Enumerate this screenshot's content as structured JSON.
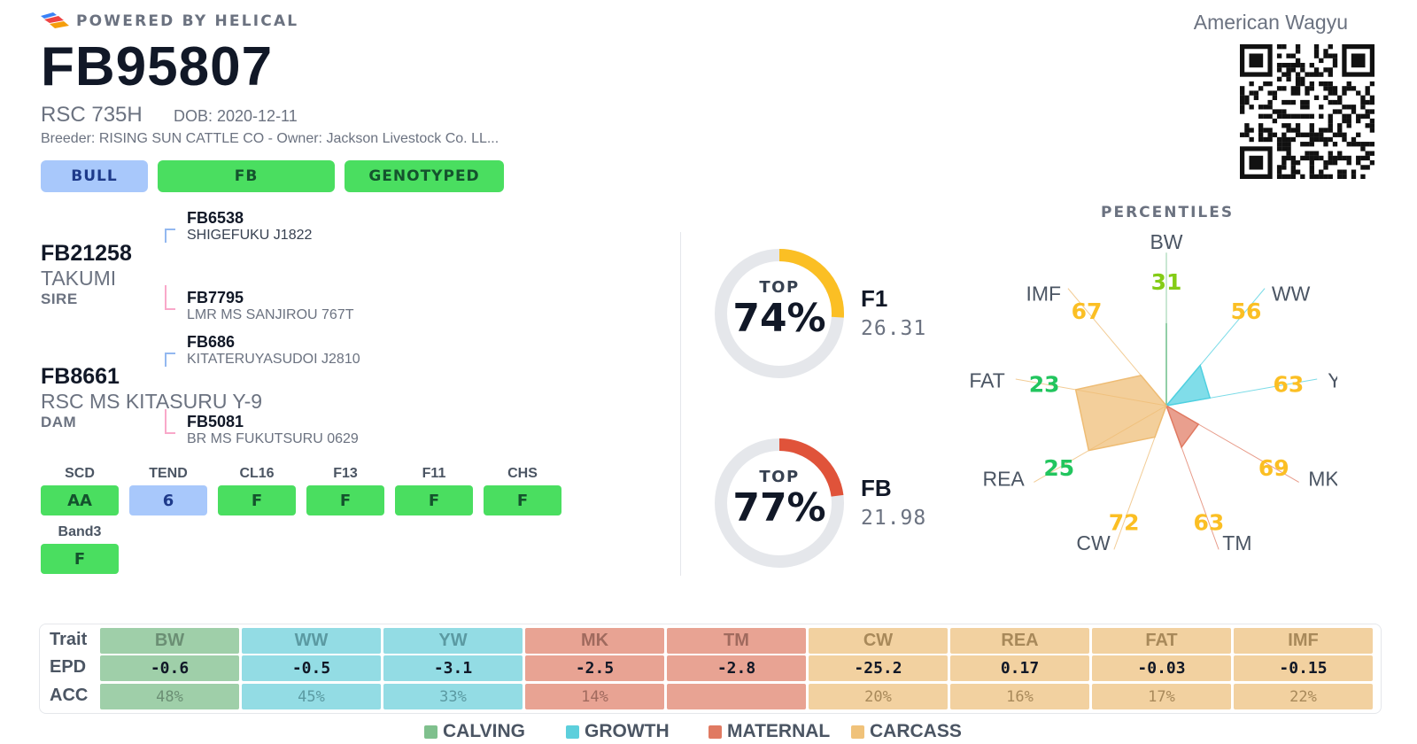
{
  "header": {
    "powered_by": "POWERED BY HELICAL",
    "registration": "FB95807",
    "name": "RSC 735H",
    "dob": "DOB: 2020-12-11",
    "breeder_line": "Breeder: RISING SUN CATTLE CO - Owner: Jackson Livestock Co. LL...",
    "breed": "American Wagyu",
    "tags": [
      {
        "label": "BULL",
        "bg": "#a8c8fb",
        "fg": "#1e3a8a"
      },
      {
        "label": "FB",
        "bg": "#4ade60",
        "fg": "#14532d"
      },
      {
        "label": "GENOTYPED",
        "bg": "#4ade60",
        "fg": "#14532d"
      }
    ]
  },
  "pedigree": {
    "sire": {
      "id": "FB21258",
      "name": "TAKUMI",
      "role": "SIRE"
    },
    "dam": {
      "id": "FB8661",
      "name": "RSC MS KITASURU Y-9",
      "role": "DAM"
    },
    "grandparents": [
      {
        "id": "FB6538",
        "name": "SHIGEFUKU J1822"
      },
      {
        "id": "FB7795",
        "name": "LMR MS SANJIROU 767T"
      },
      {
        "id": "FB686",
        "name": "KITATERUYASUDOI J2810"
      },
      {
        "id": "FB5081",
        "name": "BR MS FUKUTSURU 0629"
      }
    ]
  },
  "markers": [
    {
      "label": "SCD",
      "value": "AA",
      "bg": "#4ade60",
      "fg": "#14532d"
    },
    {
      "label": "TEND",
      "value": "6",
      "bg": "#a8c8fb",
      "fg": "#1e3a8a"
    },
    {
      "label": "CL16",
      "value": "F",
      "bg": "#4ade60",
      "fg": "#14532d"
    },
    {
      "label": "F13",
      "value": "F",
      "bg": "#4ade60",
      "fg": "#14532d"
    },
    {
      "label": "F11",
      "value": "F",
      "bg": "#4ade60",
      "fg": "#14532d"
    },
    {
      "label": "CHS",
      "value": "F",
      "bg": "#4ade60",
      "fg": "#14532d"
    },
    {
      "label": "Band3",
      "value": "F",
      "bg": "#4ade60",
      "fg": "#14532d"
    }
  ],
  "gauges": [
    {
      "top_label": "TOP",
      "percent_text": "74%",
      "fraction": 0.26,
      "color": "#fbbf24",
      "index_label": "F1",
      "index_value": "26.31"
    },
    {
      "top_label": "TOP",
      "percent_text": "77%",
      "fraction": 0.23,
      "color": "#e0533a",
      "index_label": "FB",
      "index_value": "21.98"
    }
  ],
  "percentiles": {
    "title": "PERCENTILES",
    "traits": [
      {
        "label": "BW",
        "value": "31",
        "num": 31,
        "group": "calving",
        "color": "#84cc16"
      },
      {
        "label": "WW",
        "value": "56",
        "num": 56,
        "group": "growth",
        "color": "#fbbf24"
      },
      {
        "label": "YW",
        "value": "63",
        "num": 63,
        "group": "growth",
        "color": "#fbbf24"
      },
      {
        "label": "MK",
        "value": "69",
        "num": 69,
        "group": "maternal",
        "color": "#fbbf24"
      },
      {
        "label": "TM",
        "value": "63",
        "num": 63,
        "group": "maternal",
        "color": "#fbbf24"
      },
      {
        "label": "CW",
        "value": "72",
        "num": 72,
        "group": "carcass",
        "color": "#fbbf24"
      },
      {
        "label": "REA",
        "value": "25",
        "num": 25,
        "group": "carcass",
        "color": "#22c55e"
      },
      {
        "label": "FAT",
        "value": "23",
        "num": 23,
        "group": "carcass",
        "color": "#22c55e"
      },
      {
        "label": "IMF",
        "value": "67",
        "num": 67,
        "group": "carcass",
        "color": "#fbbf24"
      }
    ]
  },
  "epd_table": {
    "row_labels": [
      "Trait",
      "EPD",
      "ACC"
    ],
    "columns": [
      {
        "trait": "BW",
        "epd": "-0.6",
        "acc": "48%",
        "group": "calving"
      },
      {
        "trait": "WW",
        "epd": "-0.5",
        "acc": "45%",
        "group": "growth"
      },
      {
        "trait": "YW",
        "epd": "-3.1",
        "acc": "33%",
        "group": "growth"
      },
      {
        "trait": "MK",
        "epd": "-2.5",
        "acc": "14%",
        "group": "maternal"
      },
      {
        "trait": "TM",
        "epd": "-2.8",
        "acc": "",
        "group": "maternal"
      },
      {
        "trait": "CW",
        "epd": "-25.2",
        "acc": "20%",
        "group": "carcass"
      },
      {
        "trait": "REA",
        "epd": "0.17",
        "acc": "16%",
        "group": "carcass"
      },
      {
        "trait": "FAT",
        "epd": "-0.03",
        "acc": "17%",
        "group": "carcass"
      },
      {
        "trait": "IMF",
        "epd": "-0.15",
        "acc": "22%",
        "group": "carcass"
      }
    ]
  },
  "groups": {
    "calving": {
      "label": "CALVING",
      "color": "#9fcfa9",
      "header_text": "#6b8f74",
      "swatch": "#7fc08d",
      "radar": "#6fbf8a"
    },
    "growth": {
      "label": "GROWTH",
      "color": "#93dce4",
      "header_text": "#5b9aa2",
      "swatch": "#5ccfdc",
      "radar": "#4fd0e0"
    },
    "maternal": {
      "label": "MATERNAL",
      "color": "#e8a393",
      "header_text": "#a06a5e",
      "swatch": "#e07a62",
      "radar": "#e07a62"
    },
    "carcass": {
      "label": "CARCASS",
      "color": "#f2d1a0",
      "header_text": "#a8895a",
      "swatch": "#f0c27a",
      "radar": "#eebc74"
    }
  }
}
